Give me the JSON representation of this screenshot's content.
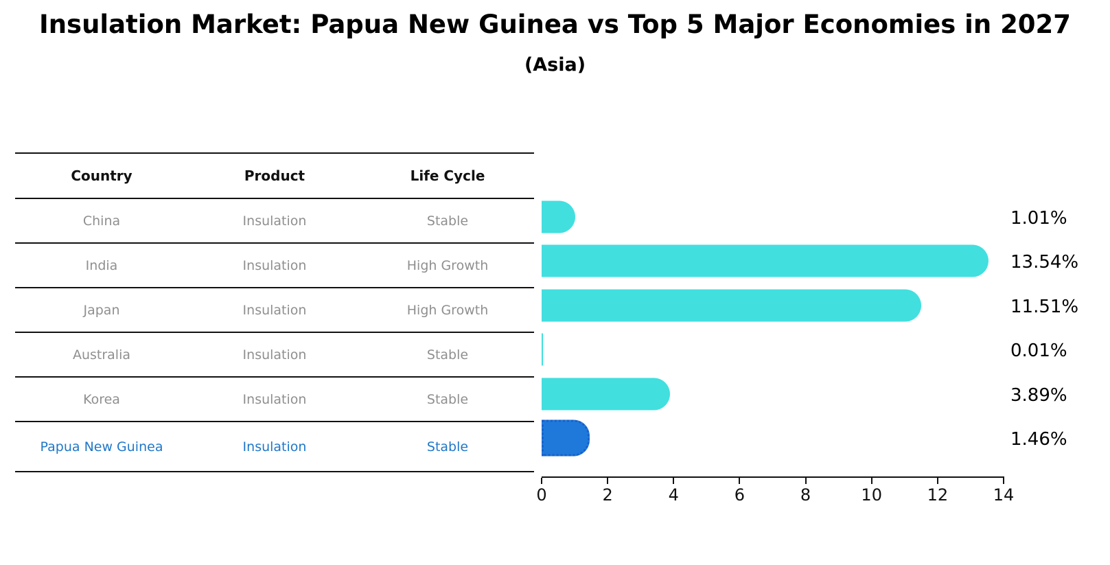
{
  "chart_data": {
    "type": "bar",
    "orientation": "horizontal",
    "title": "Insulation Market: Papua New Guinea vs Top 5 Major Economies in 2027",
    "subtitle": "(Asia)",
    "legend": "none",
    "grid": false,
    "columns": [
      "Country",
      "Product",
      "Life Cycle"
    ],
    "rows": [
      {
        "country": "China",
        "product": "Insulation",
        "life_cycle": "Stable",
        "value": 1.01,
        "value_label": "1.01%",
        "highlight": false
      },
      {
        "country": "India",
        "product": "Insulation",
        "life_cycle": "High Growth",
        "value": 13.54,
        "value_label": "13.54%",
        "highlight": false
      },
      {
        "country": "Japan",
        "product": "Insulation",
        "life_cycle": "High Growth",
        "value": 11.51,
        "value_label": "11.51%",
        "highlight": false
      },
      {
        "country": "Australia",
        "product": "Insulation",
        "life_cycle": "Stable",
        "value": 0.01,
        "value_label": "0.01%",
        "highlight": false
      },
      {
        "country": "Korea",
        "product": "Insulation",
        "life_cycle": "Stable",
        "value": 3.89,
        "value_label": "3.89%",
        "highlight": false
      },
      {
        "country": "Papua New Guinea",
        "product": "Insulation",
        "life_cycle": "Stable",
        "value": 1.46,
        "value_label": "1.46%",
        "highlight": true
      }
    ],
    "xlabel": "",
    "ylabel": "",
    "xlim": [
      0,
      14
    ],
    "x_ticks": [
      "0",
      "2",
      "4",
      "6",
      "8",
      "10",
      "12",
      "14"
    ],
    "colors": {
      "bar": "#42dfdf",
      "highlight_bar_fill": "#1e79db",
      "highlight_bar_border": "#1a5fc8",
      "highlight_text": "#1f77c8",
      "row_text": "#8f8f8f",
      "header_text": "#111111",
      "value_text": "#000000"
    }
  }
}
